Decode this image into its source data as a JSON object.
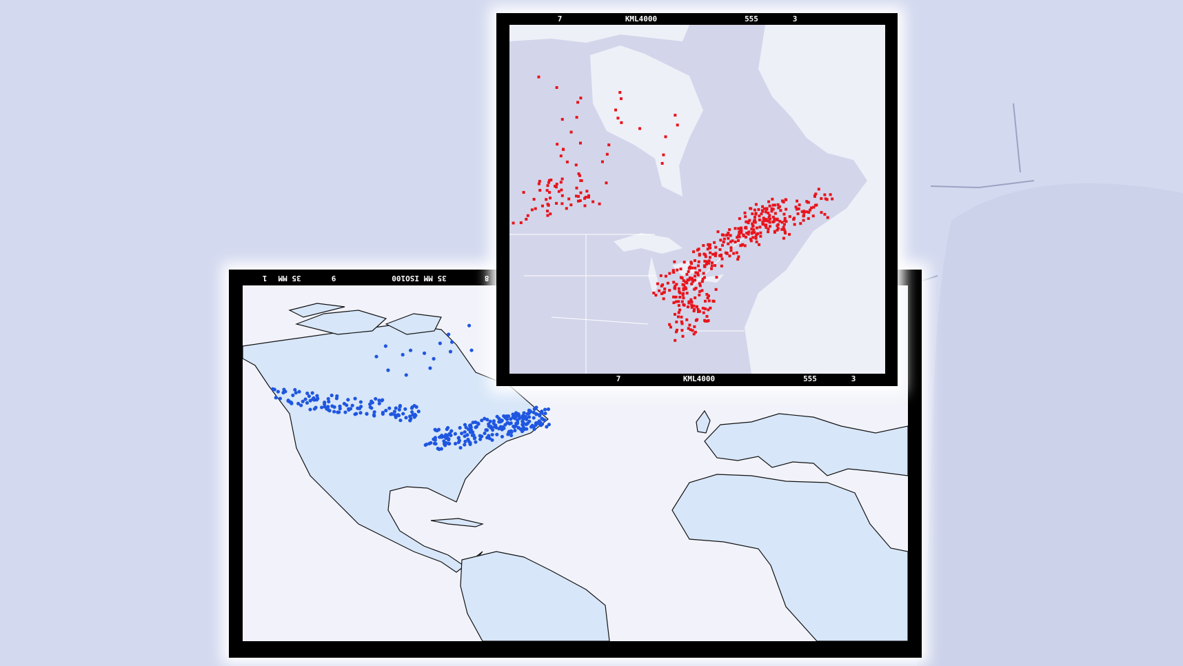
{
  "top_frame": {
    "top_edge": [
      "7",
      "KML4000",
      "555",
      "3"
    ],
    "bottom_edge": [
      "7",
      "KML4000",
      "555",
      "3"
    ]
  },
  "bottom_frame": {
    "top_edge": [
      "8",
      "35 MM ISO100",
      "9",
      "35 MM",
      "1"
    ]
  }
}
